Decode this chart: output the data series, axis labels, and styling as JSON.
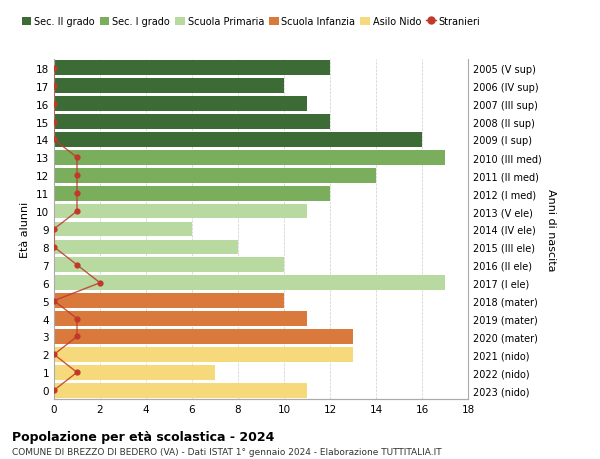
{
  "ages": [
    18,
    17,
    16,
    15,
    14,
    13,
    12,
    11,
    10,
    9,
    8,
    7,
    6,
    5,
    4,
    3,
    2,
    1,
    0
  ],
  "years": [
    "2005 (V sup)",
    "2006 (IV sup)",
    "2007 (III sup)",
    "2008 (II sup)",
    "2009 (I sup)",
    "2010 (III med)",
    "2011 (II med)",
    "2012 (I med)",
    "2013 (V ele)",
    "2014 (IV ele)",
    "2015 (III ele)",
    "2016 (II ele)",
    "2017 (I ele)",
    "2018 (mater)",
    "2019 (mater)",
    "2020 (mater)",
    "2021 (nido)",
    "2022 (nido)",
    "2023 (nido)"
  ],
  "bar_values": [
    12,
    10,
    11,
    12,
    16,
    17,
    14,
    12,
    11,
    6,
    8,
    10,
    17,
    10,
    11,
    13,
    13,
    7,
    11
  ],
  "bar_colors": [
    "#3d6b35",
    "#3d6b35",
    "#3d6b35",
    "#3d6b35",
    "#3d6b35",
    "#7aad5c",
    "#7aad5c",
    "#7aad5c",
    "#b8d9a0",
    "#b8d9a0",
    "#b8d9a0",
    "#b8d9a0",
    "#b8d9a0",
    "#d9793b",
    "#d9793b",
    "#d9793b",
    "#f5d97a",
    "#f5d97a",
    "#f5d97a"
  ],
  "stranieri_values": [
    0,
    0,
    0,
    0,
    0,
    1,
    1,
    1,
    1,
    0,
    0,
    1,
    2,
    0,
    1,
    1,
    0,
    1,
    0
  ],
  "stranieri_color": "#c0392b",
  "legend_labels": [
    "Sec. II grado",
    "Sec. I grado",
    "Scuola Primaria",
    "Scuola Infanzia",
    "Asilo Nido",
    "Stranieri"
  ],
  "legend_colors": [
    "#3d6b35",
    "#7aad5c",
    "#b8d9a0",
    "#d9793b",
    "#f5d97a",
    "#c0392b"
  ],
  "ylabel_left": "Età alunni",
  "ylabel_right": "Anni di nascita",
  "title": "Popolazione per età scolastica - 2024",
  "subtitle": "COMUNE DI BREZZO DI BEDERO (VA) - Dati ISTAT 1° gennaio 2024 - Elaborazione TUTTITALIA.IT",
  "xlim": [
    0,
    18
  ],
  "bg_color": "#ffffff",
  "grid_color": "#cccccc",
  "bar_height": 0.82
}
